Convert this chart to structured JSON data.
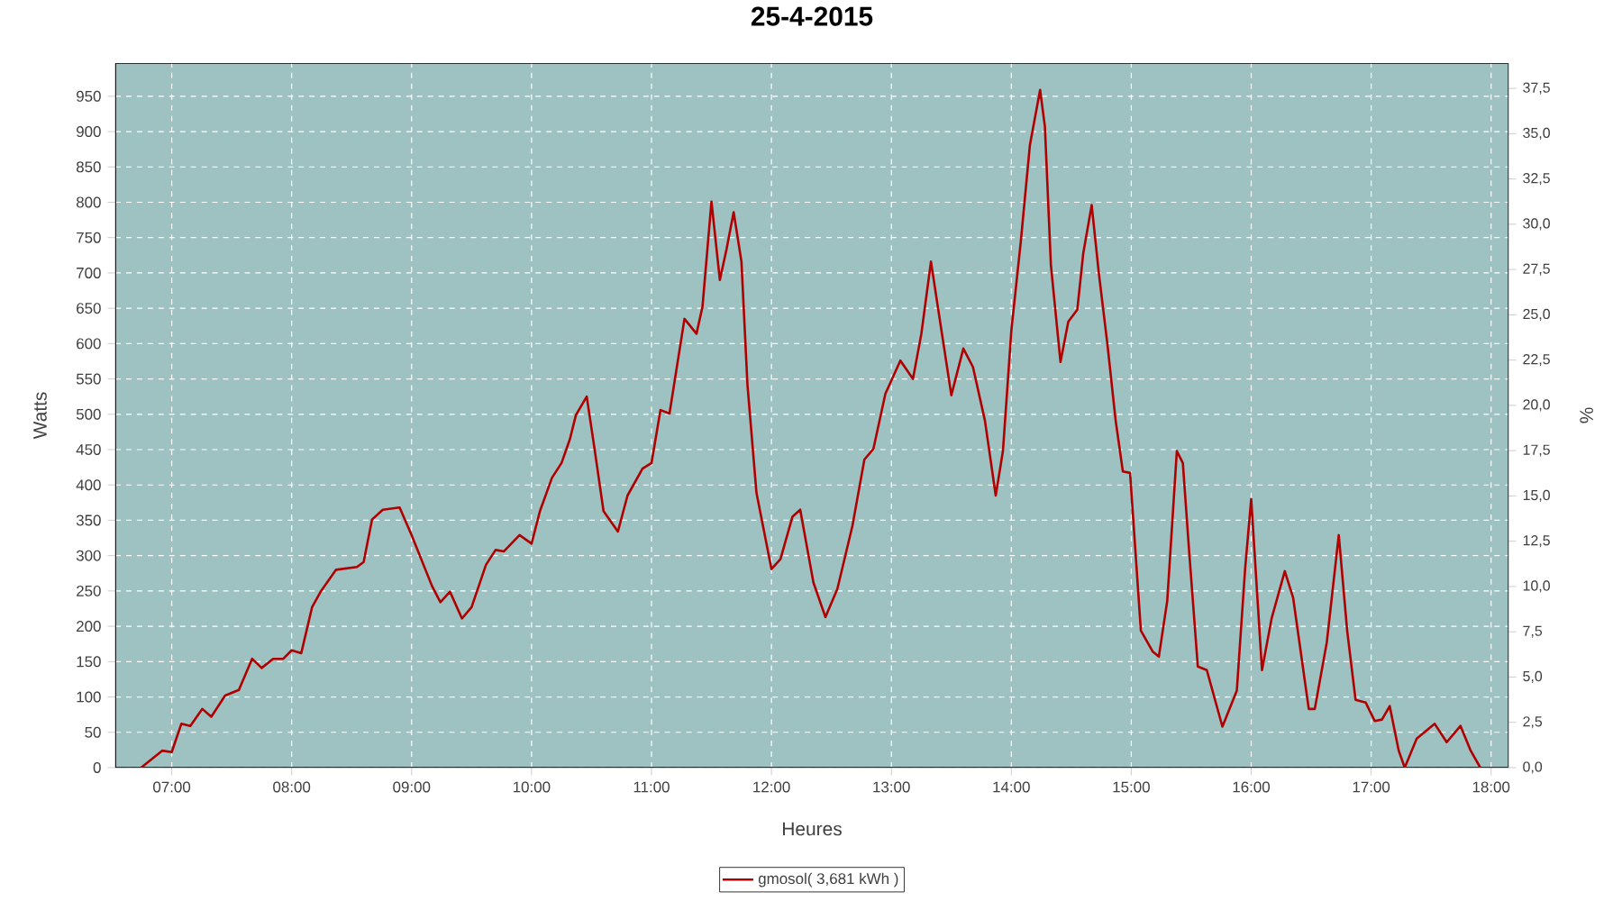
{
  "chart_data": {
    "type": "line",
    "title": "25-4-2015",
    "xlabel": "Heures",
    "ylabel": "Watts",
    "y2label": "%",
    "x": [
      6.745,
      6.92,
      7.0,
      7.08,
      7.155,
      7.255,
      7.33,
      7.445,
      7.56,
      7.67,
      7.75,
      7.845,
      7.93,
      8.0,
      8.08,
      8.17,
      8.245,
      8.37,
      8.545,
      8.6,
      8.67,
      8.76,
      8.9,
      9.0,
      9.17,
      9.24,
      9.32,
      9.42,
      9.5,
      9.62,
      9.7,
      9.77,
      9.9,
      10.0,
      10.07,
      10.17,
      10.25,
      10.32,
      10.37,
      10.46,
      10.52,
      10.6,
      10.72,
      10.8,
      10.925,
      11.0,
      11.075,
      11.15,
      11.275,
      11.375,
      11.425,
      11.5,
      11.57,
      11.625,
      11.685,
      11.75,
      11.8,
      11.875,
      12.0,
      12.075,
      12.175,
      12.24,
      12.35,
      12.45,
      12.55,
      12.675,
      12.775,
      12.85,
      12.95,
      13.075,
      13.18,
      13.25,
      13.33,
      13.41,
      13.5,
      13.6,
      13.68,
      13.78,
      13.87,
      13.93,
      14.0,
      14.08,
      14.155,
      14.24,
      14.28,
      14.33,
      14.41,
      14.475,
      14.55,
      14.6,
      14.67,
      14.73,
      14.8,
      14.87,
      14.93,
      14.99,
      15.08,
      15.18,
      15.23,
      15.3,
      15.38,
      15.43,
      15.48,
      15.555,
      15.63,
      15.76,
      15.88,
      15.95,
      16.0,
      16.05,
      16.09,
      16.17,
      16.28,
      16.35,
      16.48,
      16.53,
      16.63,
      16.73,
      16.8,
      16.87,
      16.955,
      17.03,
      17.09,
      17.155,
      17.23,
      17.28,
      17.38,
      17.53,
      17.63,
      17.745,
      17.83,
      17.91
    ],
    "series": [
      {
        "name": "gmosol( 3,681 kWh )",
        "color": "#b00000",
        "values": [
          0,
          24,
          22,
          62,
          59,
          83,
          72,
          102,
          110,
          154,
          141,
          154,
          154,
          166,
          162,
          227,
          250,
          280,
          284,
          291,
          351,
          365,
          368,
          329,
          257,
          234,
          249,
          211,
          227,
          287,
          308,
          306,
          329,
          317,
          363,
          410,
          431,
          465,
          499,
          525,
          457,
          363,
          334,
          385,
          423,
          431,
          506,
          501,
          635,
          614,
          652,
          801,
          690,
          733,
          786,
          716,
          542,
          389,
          281,
          295,
          355,
          365,
          262,
          213,
          253,
          342,
          436,
          451,
          529,
          576,
          550,
          614,
          716,
          627,
          527,
          593,
          567,
          491,
          385,
          448,
          618,
          746,
          881,
          959,
          907,
          711,
          574,
          631,
          648,
          728,
          796,
          699,
          601,
          491,
          419,
          417,
          194,
          164,
          157,
          236,
          448,
          431,
          312,
          143,
          138,
          58,
          109,
          283,
          380,
          245,
          138,
          211,
          278,
          240,
          83,
          83,
          177,
          329,
          194,
          96,
          92,
          66,
          68,
          87,
          24,
          0,
          41,
          62,
          36,
          59,
          24,
          0
        ]
      }
    ],
    "xlim": [
      6.53,
      18.145
    ],
    "ylim": [
      0,
      997
    ],
    "y2lim": [
      0,
      38.9
    ],
    "xticks": [
      {
        "value": 7,
        "label": "07:00"
      },
      {
        "value": 8,
        "label": "08:00"
      },
      {
        "value": 9,
        "label": "09:00"
      },
      {
        "value": 10,
        "label": "10:00"
      },
      {
        "value": 11,
        "label": "11:00"
      },
      {
        "value": 12,
        "label": "12:00"
      },
      {
        "value": 13,
        "label": "13:00"
      },
      {
        "value": 14,
        "label": "14:00"
      },
      {
        "value": 15,
        "label": "15:00"
      },
      {
        "value": 16,
        "label": "16:00"
      },
      {
        "value": 17,
        "label": "17:00"
      },
      {
        "value": 18,
        "label": "18:00"
      }
    ],
    "yticks": [
      0,
      50,
      100,
      150,
      200,
      250,
      300,
      350,
      400,
      450,
      500,
      550,
      600,
      650,
      700,
      750,
      800,
      850,
      900,
      950
    ],
    "y2ticks": [
      {
        "value": 0,
        "label": "0,0"
      },
      {
        "value": 2.5,
        "label": "2,5"
      },
      {
        "value": 5,
        "label": "5,0"
      },
      {
        "value": 7.5,
        "label": "7,5"
      },
      {
        "value": 10,
        "label": "10,0"
      },
      {
        "value": 12.5,
        "label": "12,5"
      },
      {
        "value": 15,
        "label": "15,0"
      },
      {
        "value": 17.5,
        "label": "17,5"
      },
      {
        "value": 20,
        "label": "20,0"
      },
      {
        "value": 22.5,
        "label": "22,5"
      },
      {
        "value": 25,
        "label": "25,0"
      },
      {
        "value": 27.5,
        "label": "27,5"
      },
      {
        "value": 30,
        "label": "30,0"
      },
      {
        "value": 32.5,
        "label": "32,5"
      },
      {
        "value": 35,
        "label": "35,0"
      },
      {
        "value": 37.5,
        "label": "37,5"
      }
    ],
    "grid": true,
    "legend": "bottom",
    "marker": "none",
    "line_style": "solid"
  }
}
